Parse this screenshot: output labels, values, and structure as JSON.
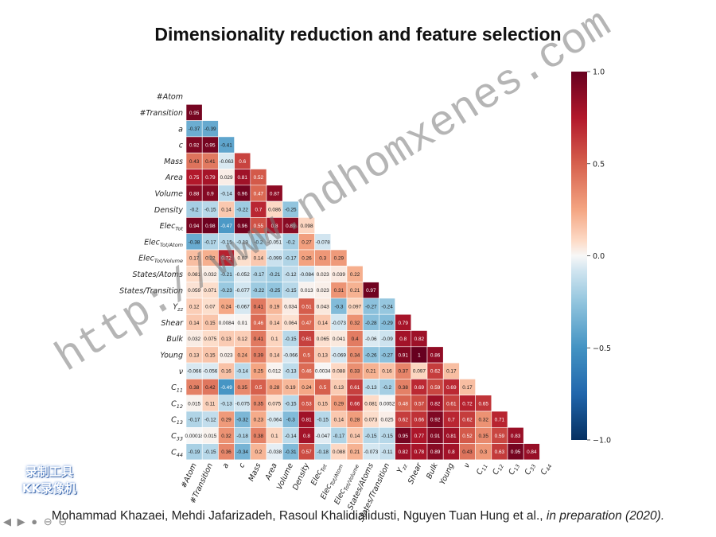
{
  "title": "Dimensionality reduction and feature selection",
  "footer": {
    "authors": "Mohammad Khazaei, Mehdi Jafarizadeh, Rasoul Khalidialidusti, Nguyen Tuan Hung et al., ",
    "status": "in preparation (2020)."
  },
  "watermark": "http://www.ndhomxenes.com",
  "recorder_logo": {
    "line1": "录制工具",
    "line2": "KK录像机"
  },
  "player_controls": [
    "◀",
    "▶",
    "●",
    "⊖",
    "⊖"
  ],
  "colors": {
    "neg": "#053061",
    "zero": "#f7f7f7",
    "pos": "#67001f"
  },
  "chart_data": {
    "type": "heatmap",
    "labels": [
      "#Atom",
      "#Transition",
      "a",
      "c",
      "Mass",
      "Area",
      "Volume",
      "Density",
      "Elec_Tot",
      "Elec_Tot/Atom",
      "Elec_Tot/Volume",
      "States/Atoms",
      "States/Transition",
      "Y_zz",
      "Shear",
      "Bulk",
      "Young",
      "ν",
      "C11",
      "C12",
      "C13",
      "C33",
      "C44"
    ],
    "row_labels": [
      "#Atom",
      "#Transition",
      "a",
      "c",
      "Mass",
      "Area",
      "Volume",
      "Density",
      "Elec",
      "Elec",
      "Elec",
      "States/Atoms",
      "States/Transition",
      "Y",
      "Shear",
      "Bulk",
      "Young",
      "ν",
      "C",
      "C",
      "C",
      "C",
      "C"
    ],
    "row_label_subs": [
      "",
      "",
      "",
      "",
      "",
      "",
      "",
      "",
      "Tot",
      "Tot/Atom",
      "Tot/Volume",
      "",
      "",
      "zz",
      "",
      "",
      "",
      "",
      "11",
      "12",
      "13",
      "33",
      "44"
    ],
    "col_labels": [
      "#Atom",
      "#Transition",
      "a",
      "c",
      "Mass",
      "Area",
      "Volume",
      "Density",
      "Elec",
      "Elec",
      "Elec",
      "States/Atoms",
      "States/Transition",
      "Y",
      "Shear",
      "Bulk",
      "Young",
      "ν",
      "C",
      "C",
      "C",
      "C",
      "C"
    ],
    "col_label_subs": [
      "",
      "",
      "",
      "",
      "",
      "",
      "",
      "",
      "Tot",
      "Tot/Atom",
      "Tot/Volume",
      "",
      "",
      "zz",
      "",
      "",
      "",
      "",
      "11",
      "12",
      "13",
      "33",
      "44"
    ],
    "lower_triangle": [
      [],
      [
        0.95
      ],
      [
        -0.37,
        -0.39
      ],
      [
        0.92,
        0.95,
        -0.41
      ],
      [
        0.43,
        0.41,
        -0.063,
        0.6
      ],
      [
        0.75,
        0.79,
        0.029,
        0.81,
        0.52
      ],
      [
        0.88,
        0.9,
        -0.14,
        0.96,
        0.47,
        0.87
      ],
      [
        -0.2,
        -0.15,
        0.14,
        -0.22,
        0.7,
        0.086,
        -0.25
      ],
      [
        0.94,
        0.98,
        -0.47,
        0.96,
        0.55,
        0.8,
        0.89,
        0.098
      ],
      [
        -0.38,
        -0.17,
        -0.15,
        -0.13,
        -0.2,
        -0.051,
        -0.2,
        0.27,
        -0.078
      ],
      [
        0.17,
        0.22,
        0.72,
        0.07,
        0.14,
        -0.099,
        -0.17,
        0.26,
        0.3,
        0.29
      ],
      [
        0.081,
        0.032,
        -0.21,
        -0.052,
        -0.17,
        -0.21,
        -0.12,
        -0.084,
        0.023,
        0.039,
        0.22
      ],
      [
        0.059,
        0.071,
        -0.23,
        -0.077,
        -0.22,
        -0.25,
        -0.15,
        0.013,
        0.023,
        0.31,
        0.21,
        0.97
      ],
      [
        0.12,
        0.07,
        0.24,
        -0.067,
        0.41,
        0.19,
        0.034,
        0.51,
        0.043,
        -0.3,
        0.097,
        -0.27,
        -0.24
      ],
      [
        0.14,
        0.15,
        0.0084,
        0.01,
        0.46,
        0.14,
        0.064,
        0.47,
        0.14,
        -0.073,
        0.32,
        -0.28,
        -0.29,
        0.79
      ],
      [
        0.032,
        0.075,
        0.13,
        0.12,
        0.41,
        0.1,
        -0.15,
        0.61,
        0.065,
        0.041,
        0.4,
        -0.06,
        -0.09,
        0.8,
        0.82
      ],
      [
        0.13,
        0.15,
        0.023,
        0.24,
        0.39,
        0.14,
        -0.066,
        0.5,
        0.13,
        -0.069,
        0.34,
        -0.26,
        -0.27,
        0.91,
        1,
        0.86
      ],
      [
        -0.066,
        -0.056,
        0.16,
        -0.14,
        0.25,
        0.012,
        -0.13,
        0.46,
        0.0034,
        0.088,
        0.33,
        0.21,
        0.16,
        0.37,
        0.097,
        0.62,
        0.17
      ],
      [
        0.38,
        0.42,
        -0.49,
        0.35,
        0.5,
        0.28,
        0.19,
        0.24,
        0.5,
        0.13,
        0.61,
        -0.13,
        -0.2,
        0.38,
        0.69,
        0.59,
        0.69,
        0.17
      ],
      [
        0.015,
        0.11,
        -0.13,
        -0.075,
        0.35,
        0.075,
        -0.15,
        0.53,
        0.15,
        0.29,
        0.66,
        0.081,
        0.0052,
        0.48,
        0.57,
        0.82,
        0.61,
        0.72,
        0.65
      ],
      [
        -0.17,
        -0.12,
        0.29,
        -0.32,
        0.23,
        -0.064,
        -0.3,
        0.81,
        -0.15,
        0.14,
        0.28,
        0.073,
        0.025,
        0.62,
        0.66,
        0.92,
        0.7,
        0.62,
        0.32,
        0.71
      ],
      [
        0.00018,
        0.015,
        0.32,
        -0.18,
        0.38,
        0.1,
        -0.14,
        0.8,
        -0.047,
        -0.17,
        0.14,
        -0.15,
        -0.15,
        0.95,
        0.77,
        0.91,
        0.81,
        0.52,
        0.35,
        0.59,
        0.83
      ],
      [
        -0.19,
        -0.15,
        0.36,
        -0.34,
        0.2,
        -0.038,
        -0.31,
        0.57,
        -0.18,
        0.088,
        0.21,
        -0.073,
        -0.11,
        0.82,
        0.78,
        0.89,
        0.8,
        0.43,
        0.3,
        0.63,
        0.95,
        0.84
      ]
    ],
    "colorbar": {
      "min": -1.0,
      "max": 1.0,
      "ticks": [
        "1.0",
        "0.5",
        "0.0",
        "−0.5",
        "−1.0"
      ]
    },
    "xlabel": "",
    "ylabel": ""
  }
}
